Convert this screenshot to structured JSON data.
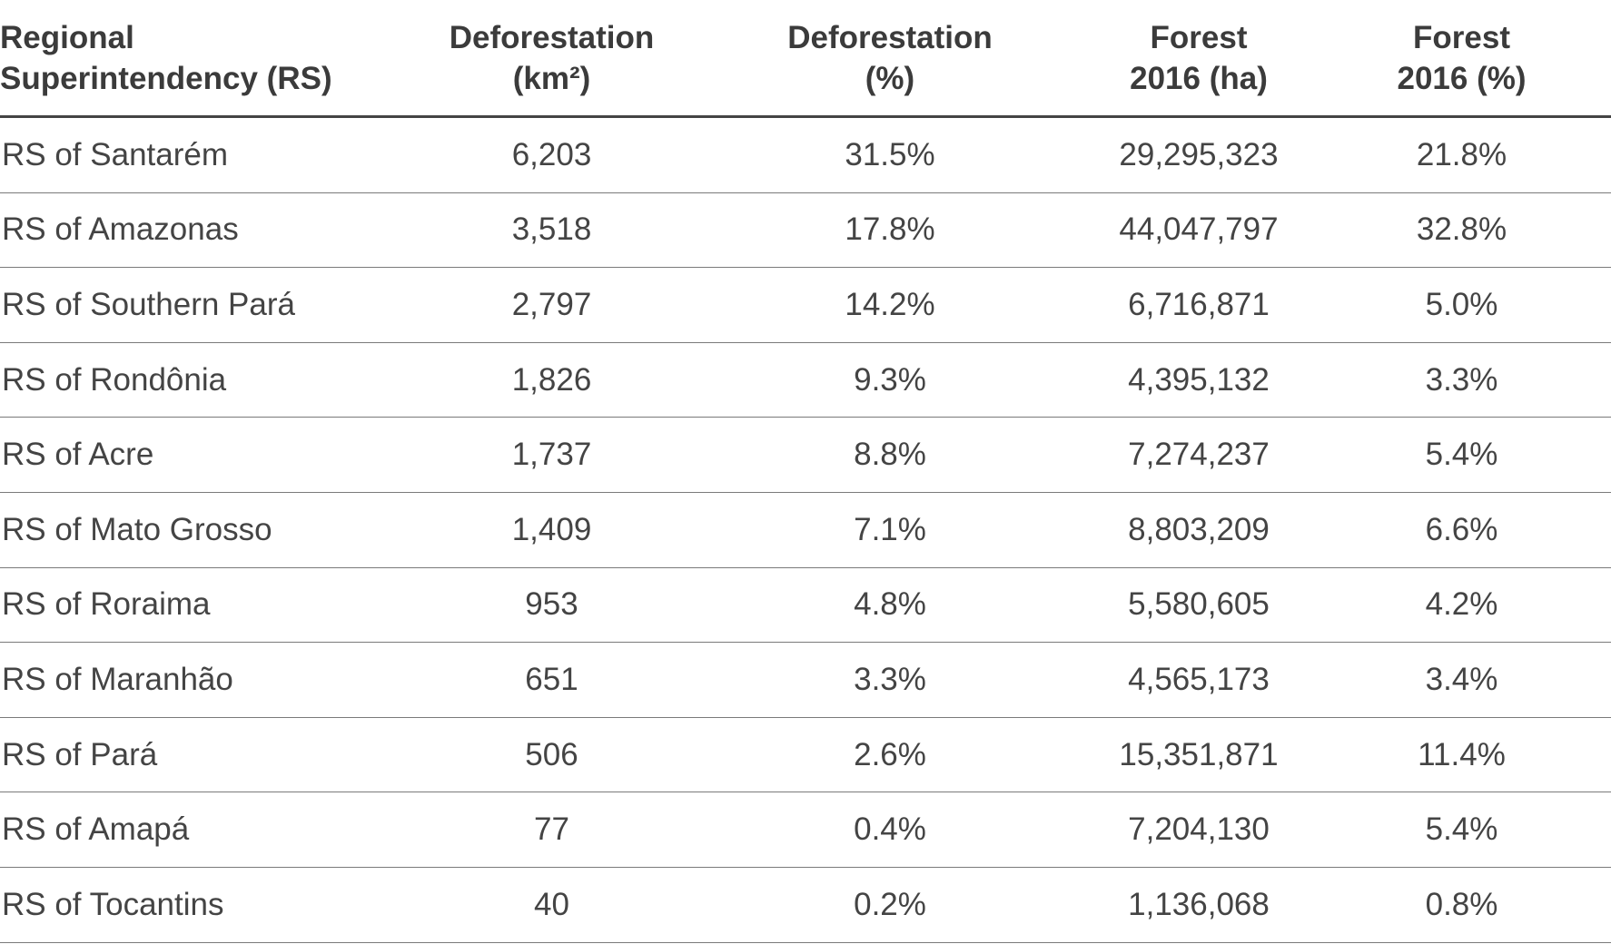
{
  "table": {
    "columns": [
      {
        "line1": "Regional",
        "line2": "Superintendency (RS)"
      },
      {
        "line1": "Deforestation",
        "line2": "(km²)"
      },
      {
        "line1": "Deforestation",
        "line2": "(%)"
      },
      {
        "line1": "Forest",
        "line2": "2016 (ha)"
      },
      {
        "line1": "Forest",
        "line2": "2016 (%)"
      }
    ],
    "rows": [
      [
        "RS of Santarém",
        "6,203",
        "31.5%",
        "29,295,323",
        "21.8%"
      ],
      [
        "RS of Amazonas",
        "3,518",
        "17.8%",
        "44,047,797",
        "32.8%"
      ],
      [
        "RS of Southern Pará",
        "2,797",
        "14.2%",
        "6,716,871",
        "5.0%"
      ],
      [
        "RS of Rondônia",
        "1,826",
        "9.3%",
        "4,395,132",
        "3.3%"
      ],
      [
        "RS of Acre",
        "1,737",
        "8.8%",
        "7,274,237",
        "5.4%"
      ],
      [
        "RS of Mato Grosso",
        "1,409",
        "7.1%",
        "8,803,209",
        "6.6%"
      ],
      [
        "RS of Roraima",
        "953",
        "4.8%",
        "5,580,605",
        "4.2%"
      ],
      [
        "RS of Maranhão",
        "651",
        "3.3%",
        "4,565,173",
        "3.4%"
      ],
      [
        "RS of Pará",
        "506",
        "2.6%",
        "15,351,871",
        "11.4%"
      ],
      [
        "RS of Amapá",
        "77",
        "0.4%",
        "7,204,130",
        "5.4%"
      ],
      [
        "RS of Tocantins",
        "40",
        "0.2%",
        "1,136,068",
        "0.8%"
      ]
    ]
  }
}
